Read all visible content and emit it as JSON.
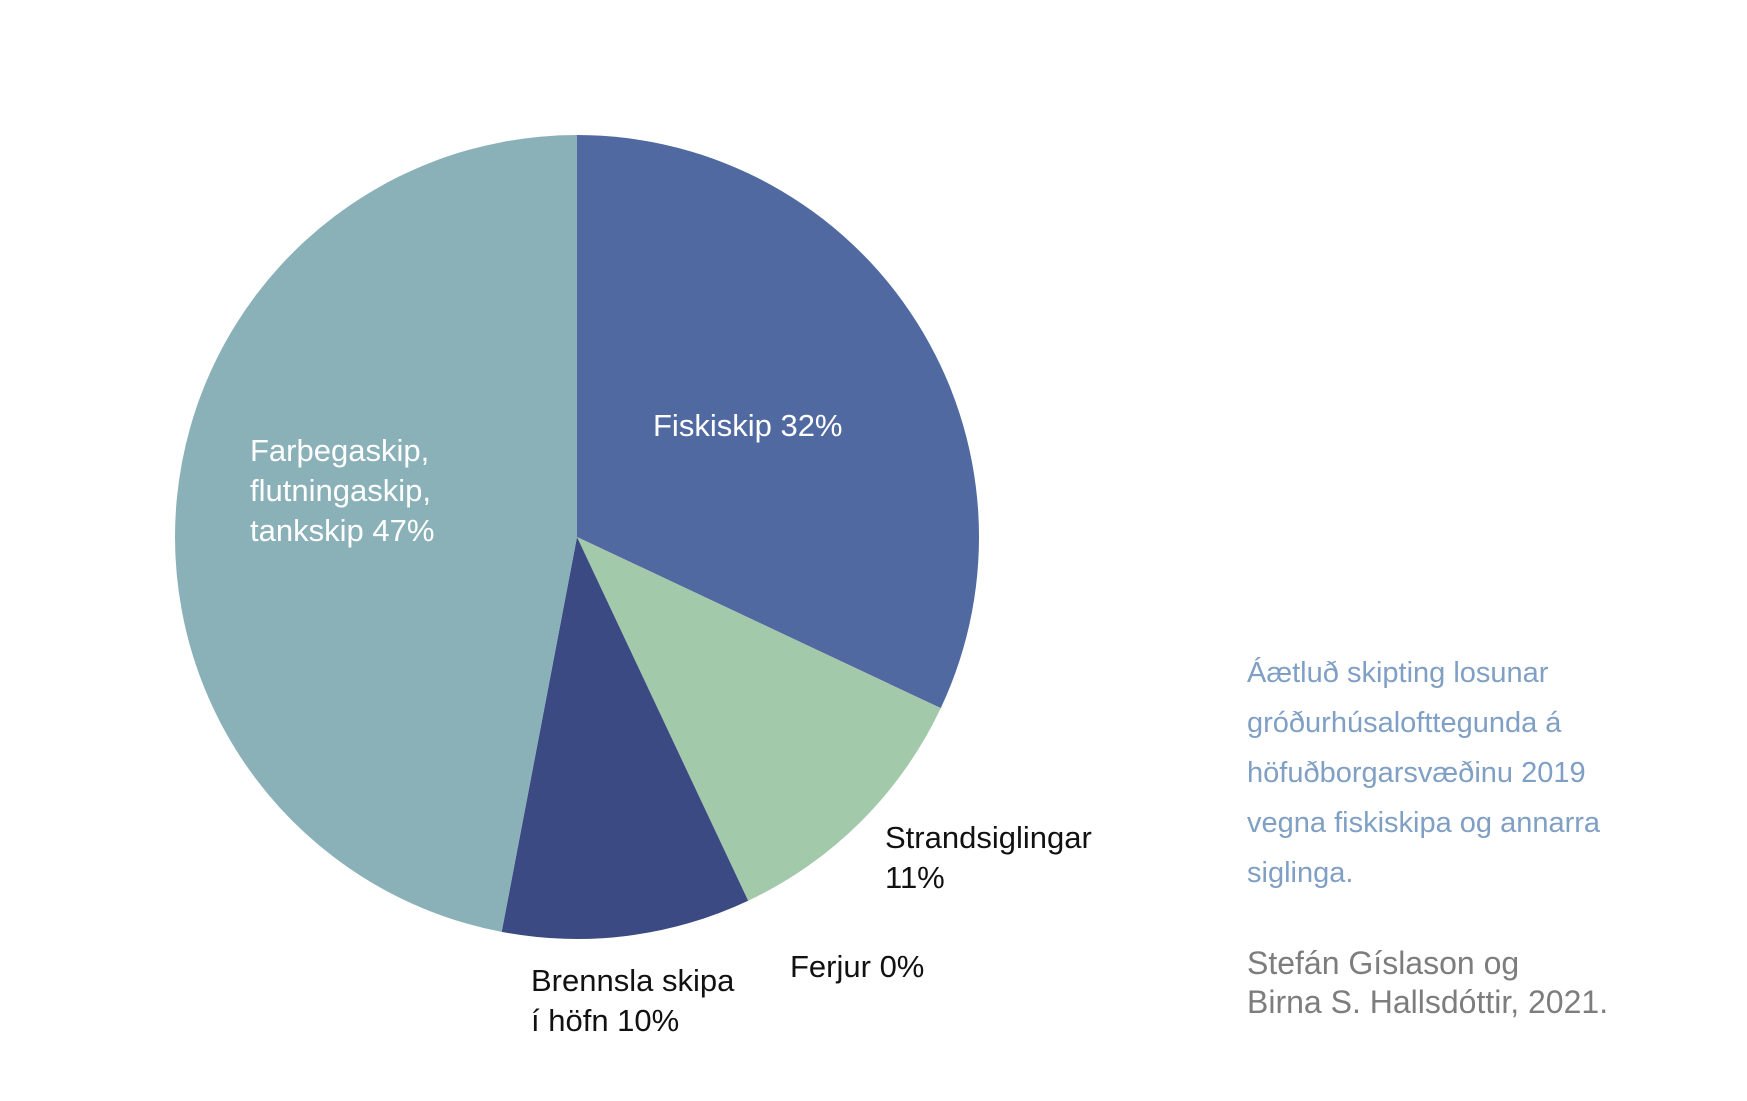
{
  "chart_data": {
    "type": "pie",
    "start_angle_deg": 0,
    "direction": "clockwise",
    "slices": [
      {
        "label": [
          "Fiskiskip 32%"
        ],
        "value": 32,
        "color": "#5069a1",
        "label_color": "#ffffff"
      },
      {
        "label": [
          "Strandsiglingar",
          "11%"
        ],
        "value": 11,
        "color": "#a3c9ab",
        "label_color": "#111111"
      },
      {
        "label": [
          "Ferjur 0%"
        ],
        "value": 0,
        "color": "#a3c9ab",
        "label_color": "#111111"
      },
      {
        "label": [
          "Brennsla skipa",
          "í höfn 10%"
        ],
        "value": 10,
        "color": "#3b4a82",
        "label_color": "#111111"
      },
      {
        "label": [
          "Farþegaskip,",
          "flutningaskip,",
          "tankskip 47%"
        ],
        "value": 47,
        "color": "#8ab1b8",
        "label_color": "#ffffff"
      }
    ]
  },
  "caption": {
    "lines": [
      "Áætluð skipting losunar",
      "gróðurhúsalofttegunda á",
      "höfuðborgarsvæðinu 2019",
      "vegna fiskiskipa og annarra",
      "siglinga."
    ]
  },
  "credit": {
    "lines": [
      "Stefán Gíslason og",
      "Birna S. Hallsdóttir, 2021."
    ]
  }
}
